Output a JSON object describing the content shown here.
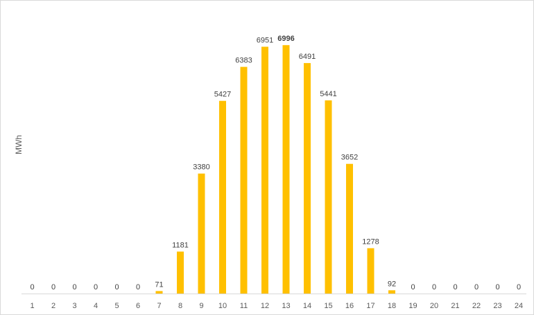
{
  "chart_data": {
    "type": "bar",
    "title": "",
    "xlabel": "",
    "ylabel": "MWh",
    "categories": [
      "1",
      "2",
      "3",
      "4",
      "5",
      "6",
      "7",
      "8",
      "9",
      "10",
      "11",
      "12",
      "13",
      "14",
      "15",
      "16",
      "17",
      "18",
      "19",
      "20",
      "21",
      "22",
      "23",
      "24"
    ],
    "series": [
      {
        "values": [
          0,
          0,
          0,
          0,
          0,
          0,
          71,
          1181,
          3380,
          5427,
          6383,
          6951,
          6996,
          6491,
          5441,
          3652,
          1278,
          92,
          0,
          0,
          0,
          0,
          0,
          0
        ]
      }
    ],
    "data_labels": [
      "0",
      "0",
      "0",
      "0",
      "0",
      "0",
      "71",
      "1181",
      "3380",
      "5427",
      "6383",
      "6951",
      "6996",
      "6491",
      "5441",
      "3652",
      "1278",
      "92",
      "0",
      "0",
      "0",
      "0",
      "0",
      "0"
    ],
    "highlighted_label": "6996",
    "ylim": [
      0,
      7000
    ],
    "grid": false,
    "legend": "none",
    "colors": {
      "bar": "#FFC000",
      "axis": "#d9d9d9",
      "label": "#404040",
      "tick": "#595959"
    }
  }
}
